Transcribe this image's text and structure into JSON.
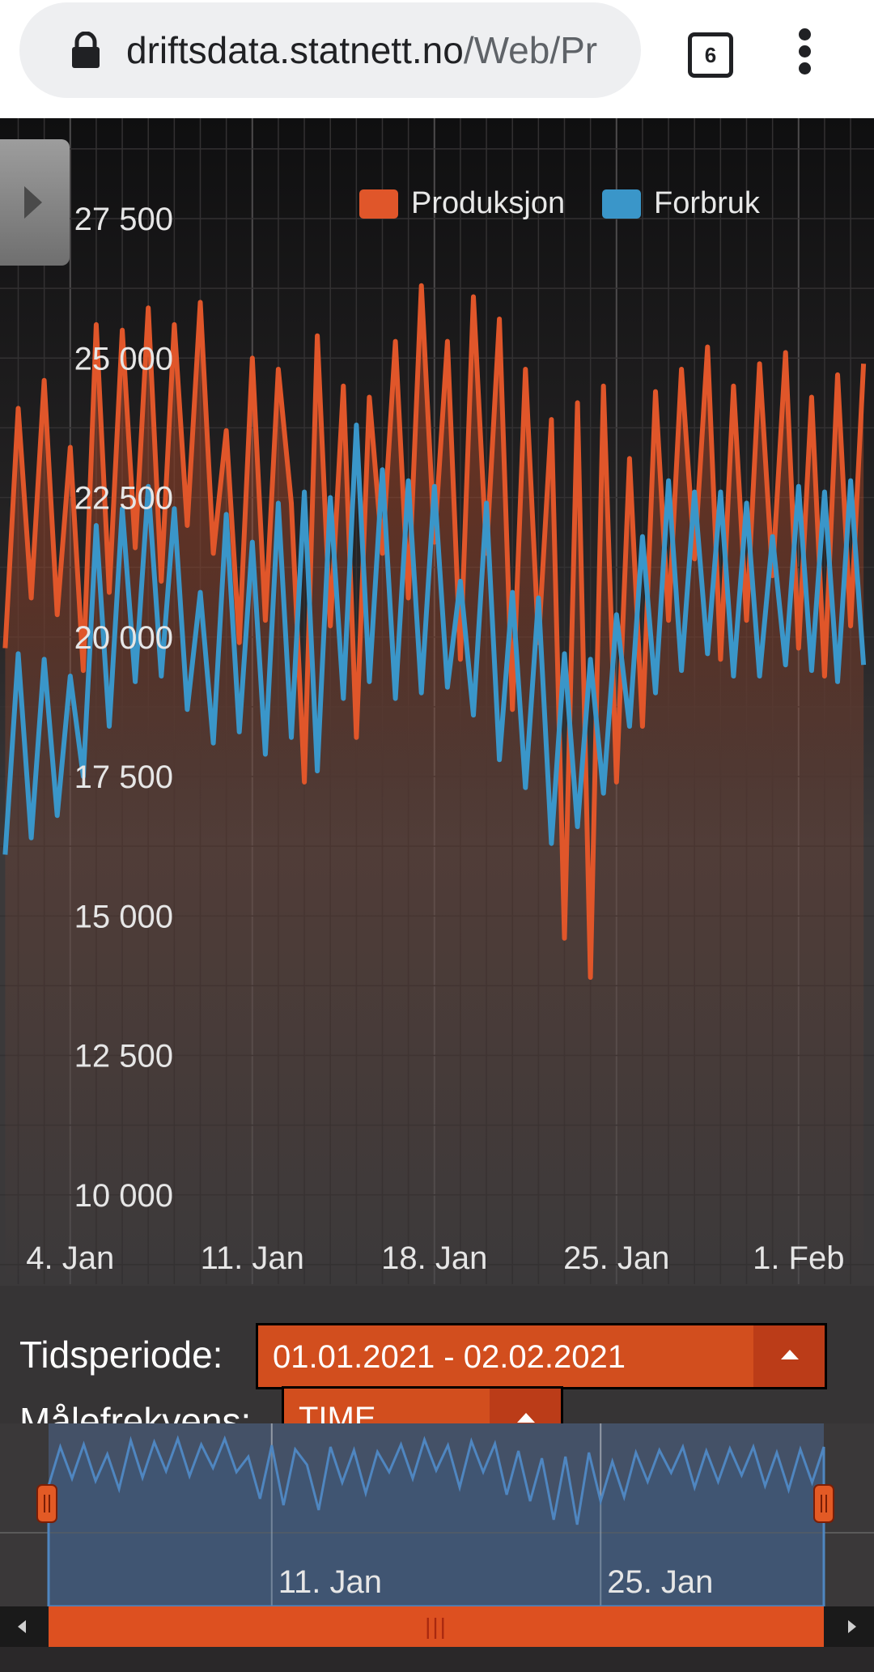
{
  "browser": {
    "url_domain": "driftsdata.statnett.no",
    "url_path": "/Web/Pr",
    "tab_count": "6",
    "icons": [
      "lock-icon",
      "tab-switcher-icon",
      "more-menu-icon"
    ]
  },
  "colors": {
    "produksjon": "#e0562a",
    "forbruk": "#3a96c9",
    "accent": "#d24e1e"
  },
  "chart_data": {
    "type": "line",
    "x_tick_labels": [
      "4. Jan",
      "11. Jan",
      "18. Jan",
      "25. Jan",
      "1. Feb"
    ],
    "x_ticks_day": [
      4,
      11,
      18,
      25,
      32
    ],
    "y_tick_labels": [
      "10 000",
      "12 500",
      "15 000",
      "17 500",
      "20 000",
      "22 500",
      "25 000",
      "27 500"
    ],
    "y_ticks": [
      10000,
      12500,
      15000,
      17500,
      20000,
      22500,
      25000,
      27500
    ],
    "ylim": [
      8400,
      29300
    ],
    "xlim": [
      1.3,
      34.9
    ],
    "grid": true,
    "legend_position": "top-center",
    "x": [
      1.5,
      2.0,
      2.5,
      3.0,
      3.5,
      4.0,
      4.5,
      5.0,
      5.5,
      6.0,
      6.5,
      7.0,
      7.5,
      8.0,
      8.5,
      9.0,
      9.5,
      10.0,
      10.5,
      11.0,
      11.5,
      12.0,
      12.5,
      13.0,
      13.5,
      14.0,
      14.5,
      15.0,
      15.5,
      16.0,
      16.5,
      17.0,
      17.5,
      18.0,
      18.5,
      19.0,
      19.5,
      20.0,
      20.5,
      21.0,
      21.5,
      22.0,
      22.5,
      23.0,
      23.5,
      24.0,
      24.5,
      25.0,
      25.5,
      26.0,
      26.5,
      27.0,
      27.5,
      28.0,
      28.5,
      29.0,
      29.5,
      30.0,
      30.5,
      31.0,
      31.5,
      32.0,
      32.5,
      33.0,
      33.5,
      34.0,
      34.5
    ],
    "series": [
      {
        "name": "Produksjon",
        "values": [
          19800,
          24100,
          20700,
          24600,
          20400,
          23400,
          19400,
          25600,
          20800,
          25500,
          21600,
          25900,
          21000,
          25600,
          22000,
          26000,
          21500,
          23700,
          19900,
          25000,
          20300,
          24800,
          22400,
          17400,
          25400,
          20200,
          24500,
          18200,
          24300,
          21500,
          25300,
          20700,
          26300,
          21700,
          25300,
          19600,
          26100,
          21500,
          25700,
          18700,
          24800,
          19900,
          23900,
          14600,
          24200,
          13900,
          24500,
          17400,
          23200,
          18400,
          24400,
          20300,
          24800,
          21400,
          25200,
          19600,
          24500,
          20300,
          24900,
          21100,
          25100,
          19800,
          24300,
          19300,
          24700,
          20200,
          24900
        ]
      },
      {
        "name": "Forbruk",
        "values": [
          16100,
          19700,
          16400,
          19600,
          16800,
          19300,
          17500,
          22000,
          18400,
          22300,
          19200,
          22700,
          19300,
          22300,
          18700,
          20800,
          18100,
          22200,
          18300,
          21700,
          17900,
          22400,
          18200,
          22600,
          17600,
          22500,
          18900,
          23800,
          19200,
          23000,
          18900,
          22800,
          19000,
          22700,
          19100,
          21000,
          18600,
          22400,
          17800,
          20800,
          17300,
          20700,
          16300,
          19700,
          16600,
          19600,
          17200,
          20400,
          18400,
          21800,
          19000,
          22800,
          19400,
          22600,
          19700,
          22600,
          19300,
          22400,
          19300,
          21800,
          19500,
          22700,
          19400,
          22600,
          19200,
          22800,
          19500
        ]
      }
    ]
  },
  "controls": {
    "period_label": "Tidsperiode:",
    "period_value": "01.01.2021 - 02.02.2021",
    "frequency_label": "Målefrekvens:",
    "frequency_value": "TIME"
  },
  "navigator": {
    "tick_labels": [
      "11. Jan",
      "25. Jan"
    ],
    "ticks_day": [
      11,
      25
    ],
    "series_values": [
      19800,
      24600,
      20700,
      24900,
      20400,
      23700,
      19400,
      25400,
      20800,
      25200,
      21600,
      25600,
      21000,
      24900,
      22000,
      25600,
      21500,
      23400,
      18200,
      24800,
      17400,
      24300,
      22400,
      16800,
      24600,
      20200,
      24200,
      18900,
      24000,
      21500,
      24900,
      20700,
      25500,
      21700,
      24800,
      19600,
      25300,
      21500,
      25000,
      18700,
      24100,
      17900,
      23200,
      15600,
      23400,
      15000,
      23900,
      17900,
      22800,
      18400,
      23900,
      20300,
      24200,
      21400,
      24600,
      19600,
      24100,
      20300,
      24400,
      21100,
      24600,
      19800,
      23900,
      19300,
      24300,
      20200,
      24600
    ],
    "scrollbar_label": "|||"
  }
}
